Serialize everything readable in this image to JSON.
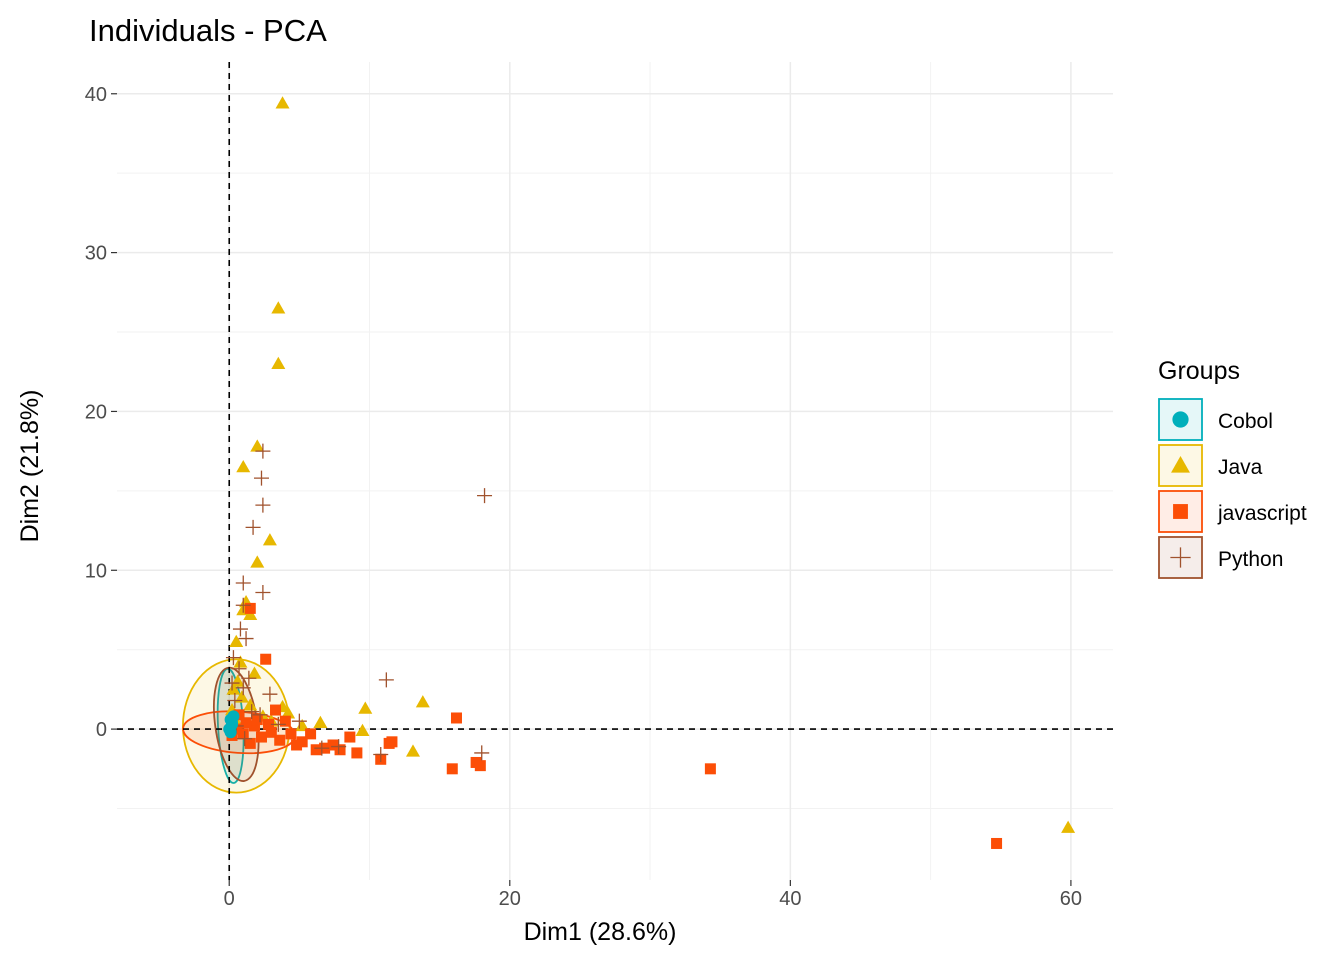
{
  "chart_data": {
    "type": "scatter",
    "title": "Individuals - PCA",
    "xlabel": "Dim1 (28.6%)",
    "ylabel": "Dim2 (21.8%)",
    "xlim": [
      -8,
      63
    ],
    "ylim": [
      -9.5,
      42
    ],
    "x_ticks": [
      0,
      20,
      40,
      60
    ],
    "y_ticks": [
      0,
      10,
      20,
      30,
      40
    ],
    "grid": true,
    "reference_lines": [
      {
        "axis": "x",
        "value": 0
      },
      {
        "axis": "y",
        "value": 0
      }
    ],
    "legend": {
      "title": "Groups",
      "position": "right"
    },
    "series": [
      {
        "name": "Cobol",
        "marker": "circle",
        "color": "#00AFBB",
        "points": [
          [
            0.1,
            0.6
          ],
          [
            0.2,
            0.3
          ],
          [
            0.0,
            0.0
          ],
          [
            0.3,
            0.8
          ],
          [
            0.1,
            -0.2
          ],
          [
            0.2,
            0.4
          ]
        ],
        "ellipse": {
          "cx": 0.1,
          "cy": 0.2,
          "rx": 0.9,
          "ry": 3.6,
          "angle": 3
        }
      },
      {
        "name": "Java",
        "marker": "triangle",
        "color": "#E7B800",
        "points": [
          [
            3.8,
            39.4
          ],
          [
            3.5,
            26.5
          ],
          [
            3.5,
            23.0
          ],
          [
            2.0,
            17.8
          ],
          [
            1.0,
            16.5
          ],
          [
            2.9,
            11.9
          ],
          [
            2.0,
            10.5
          ],
          [
            1.2,
            8.0
          ],
          [
            1.0,
            7.5
          ],
          [
            1.5,
            7.2
          ],
          [
            0.5,
            5.5
          ],
          [
            0.8,
            4.2
          ],
          [
            3.8,
            1.4
          ],
          [
            4.2,
            1.0
          ],
          [
            6.5,
            0.4
          ],
          [
            9.7,
            1.3
          ],
          [
            13.8,
            1.7
          ],
          [
            9.5,
            -0.1
          ],
          [
            13.1,
            -1.4
          ],
          [
            59.8,
            -6.2
          ],
          [
            0.3,
            2.5
          ],
          [
            0.6,
            3.0
          ],
          [
            1.5,
            1.5
          ],
          [
            2.4,
            0.8
          ],
          [
            0.2,
            1.2
          ],
          [
            0.9,
            2.0
          ],
          [
            1.8,
            3.5
          ],
          [
            0.4,
            0.6
          ],
          [
            5.2,
            0.2
          ],
          [
            3.0,
            0.5
          ]
        ],
        "ellipse": {
          "cx": 0.5,
          "cy": 0.2,
          "rx": 3.8,
          "ry": 4.2,
          "angle": 0
        }
      },
      {
        "name": "javascript",
        "marker": "square",
        "color": "#FC4E07",
        "points": [
          [
            1.5,
            7.6
          ],
          [
            2.6,
            4.4
          ],
          [
            3.3,
            1.2
          ],
          [
            4.0,
            0.5
          ],
          [
            4.4,
            -0.3
          ],
          [
            5.2,
            -0.8
          ],
          [
            5.8,
            -0.3
          ],
          [
            6.8,
            -1.2
          ],
          [
            7.4,
            -1.0
          ],
          [
            7.9,
            -1.3
          ],
          [
            8.6,
            -0.5
          ],
          [
            9.1,
            -1.5
          ],
          [
            10.8,
            -1.9
          ],
          [
            11.6,
            -0.8
          ],
          [
            11.4,
            -0.9
          ],
          [
            15.9,
            -2.5
          ],
          [
            16.2,
            0.7
          ],
          [
            17.6,
            -2.1
          ],
          [
            17.9,
            -2.3
          ],
          [
            34.3,
            -2.5
          ],
          [
            54.7,
            -7.2
          ],
          [
            0.5,
            0.0
          ],
          [
            1.0,
            -0.3
          ],
          [
            1.8,
            0.2
          ],
          [
            2.3,
            -0.5
          ],
          [
            3.0,
            -0.2
          ],
          [
            0.2,
            -0.4
          ],
          [
            1.2,
            0.4
          ],
          [
            2.8,
            0.3
          ],
          [
            4.8,
            -1.0
          ],
          [
            6.2,
            -1.3
          ],
          [
            0.7,
            0.9
          ],
          [
            3.6,
            -0.7
          ],
          [
            1.5,
            -0.9
          ],
          [
            2.0,
            0.6
          ]
        ],
        "ellipse": {
          "cx": 0.7,
          "cy": -0.2,
          "rx": 4.0,
          "ry": 1.3,
          "angle": -4
        }
      },
      {
        "name": "Python",
        "marker": "plus",
        "color": "#A0522D",
        "points": [
          [
            2.4,
            17.5
          ],
          [
            2.3,
            15.8
          ],
          [
            2.4,
            14.1
          ],
          [
            1.7,
            12.7
          ],
          [
            18.2,
            14.7
          ],
          [
            1.0,
            9.2
          ],
          [
            2.4,
            8.6
          ],
          [
            1.0,
            7.8
          ],
          [
            0.8,
            6.3
          ],
          [
            1.2,
            5.7
          ],
          [
            1.4,
            3.2
          ],
          [
            11.2,
            3.1
          ],
          [
            2.9,
            2.2
          ],
          [
            1.0,
            2.6
          ],
          [
            5.0,
            0.5
          ],
          [
            6.6,
            -1.2
          ],
          [
            10.8,
            -1.6
          ],
          [
            18.0,
            -1.5
          ],
          [
            0.4,
            1.8
          ],
          [
            0.3,
            4.5
          ],
          [
            0.7,
            3.8
          ],
          [
            1.6,
            1.1
          ],
          [
            3.5,
            0.3
          ],
          [
            7.8,
            -1.1
          ],
          [
            0.5,
            0.2
          ],
          [
            1.1,
            -0.6
          ],
          [
            2.2,
            0.9
          ],
          [
            0.2,
            2.9
          ]
        ],
        "ellipse": {
          "cx": 0.5,
          "cy": 0.3,
          "rx": 1.5,
          "ry": 3.6,
          "angle": 8
        }
      }
    ]
  }
}
